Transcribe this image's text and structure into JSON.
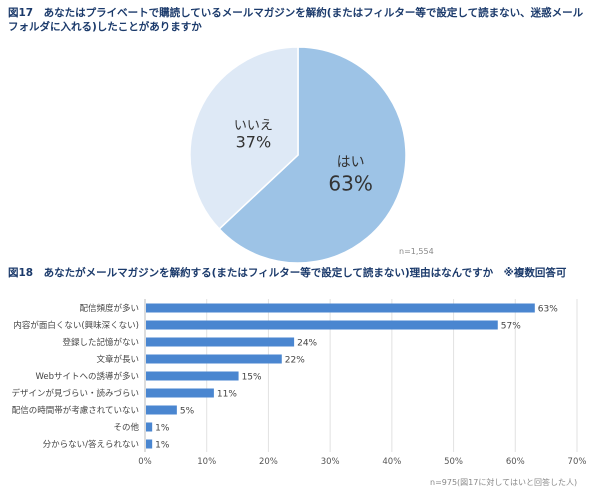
{
  "chart_data": [
    {
      "type": "pie",
      "title": "図17　あなたはプライベートで購読しているメールマガジンを解約(またはフィルター等で設定して読まない、迷惑メールフォルダに入れる)したことがありますか",
      "slices": [
        {
          "label": "はい",
          "value": 63,
          "value_label": "63%",
          "color": "#9dc3e6"
        },
        {
          "label": "いいえ",
          "value": 37,
          "value_label": "37%",
          "color": "#dee9f6"
        }
      ],
      "note": "n=1,554"
    },
    {
      "type": "bar",
      "orientation": "horizontal",
      "title": "図18　あなたがメールマガジンを解約する(またはフィルター等で設定して読まない)理由はなんですか　※複数回答可",
      "categories": [
        "配信頻度が多い",
        "内容が面白くない(興味深くない)",
        "登録した記憶がない",
        "文章が長い",
        "Webサイトへの誘導が多い",
        "デザインが見づらい・読みづらい",
        "配信の時間帯が考慮されていない",
        "その他",
        "分からない/答えられない"
      ],
      "values": [
        63,
        57,
        24,
        22,
        15,
        11,
        5,
        1,
        1
      ],
      "data_labels": [
        "63%",
        "57%",
        "24%",
        "22%",
        "15%",
        "11%",
        "5%",
        "1%",
        "1%"
      ],
      "xlim": [
        0,
        70
      ],
      "xticks": [
        "0%",
        "10%",
        "20%",
        "30%",
        "40%",
        "50%",
        "60%",
        "70%"
      ],
      "grid": true,
      "color": "#4a86d0",
      "note": "n=975(図17に対してはいと回答した人)"
    }
  ]
}
